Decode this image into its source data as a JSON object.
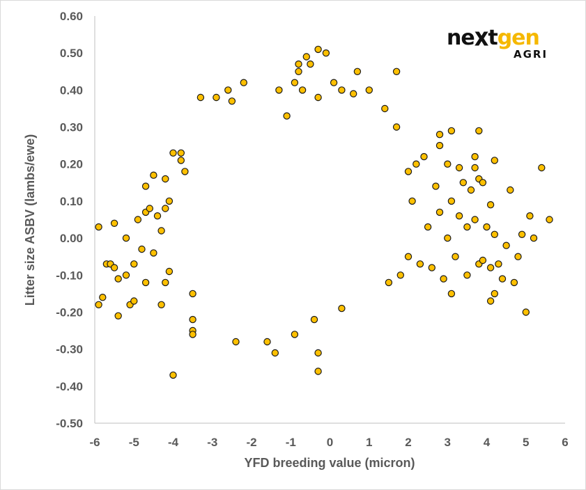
{
  "logo": {
    "main_prefix": "ne",
    "main_x": "x",
    "main_t": "t",
    "main_suffix": "gen",
    "sub": "AGRI",
    "brand_color": "#f5b800",
    "dark_color": "#111111"
  },
  "chart_data": {
    "type": "scatter",
    "title": "",
    "xlabel": "YFD breeding value (micron)",
    "ylabel": "Litter size ASBV (lambs/ewe)",
    "xlim": [
      -6,
      6
    ],
    "ylim": [
      -0.5,
      0.6
    ],
    "x_ticks": [
      "-6",
      "-5",
      "-4",
      "-3",
      "-2",
      "-1",
      "0",
      "1",
      "2",
      "3",
      "4",
      "5",
      "6"
    ],
    "y_ticks": [
      "-0.50",
      "-0.40",
      "-0.30",
      "-0.20",
      "-0.10",
      "0.00",
      "0.10",
      "0.20",
      "0.30",
      "0.40",
      "0.50",
      "0.60"
    ],
    "grid": false,
    "legend": "none",
    "marker_fill": "#ffc000",
    "marker_edge": "#1a1a1a",
    "series": [
      {
        "points": [
          [
            -5.9,
            0.03
          ],
          [
            -5.9,
            -0.18
          ],
          [
            -5.8,
            -0.16
          ],
          [
            -5.7,
            -0.07
          ],
          [
            -5.6,
            -0.07
          ],
          [
            -5.5,
            0.04
          ],
          [
            -5.5,
            -0.08
          ],
          [
            -5.4,
            -0.11
          ],
          [
            -5.4,
            -0.21
          ],
          [
            -5.2,
            0.0
          ],
          [
            -5.2,
            -0.1
          ],
          [
            -5.1,
            -0.18
          ],
          [
            -5.0,
            -0.07
          ],
          [
            -5.0,
            -0.17
          ],
          [
            -4.9,
            0.05
          ],
          [
            -4.8,
            -0.03
          ],
          [
            -4.7,
            0.14
          ],
          [
            -4.7,
            0.07
          ],
          [
            -4.7,
            -0.12
          ],
          [
            -4.6,
            0.08
          ],
          [
            -4.5,
            0.17
          ],
          [
            -4.5,
            -0.04
          ],
          [
            -4.4,
            0.06
          ],
          [
            -4.3,
            0.02
          ],
          [
            -4.3,
            -0.18
          ],
          [
            -4.2,
            0.16
          ],
          [
            -4.2,
            0.08
          ],
          [
            -4.2,
            -0.12
          ],
          [
            -4.1,
            0.1
          ],
          [
            -4.1,
            -0.09
          ],
          [
            -4.0,
            0.23
          ],
          [
            -4.0,
            -0.37
          ],
          [
            -3.8,
            0.23
          ],
          [
            -3.8,
            0.21
          ],
          [
            -3.7,
            0.18
          ],
          [
            -3.5,
            -0.15
          ],
          [
            -3.5,
            -0.22
          ],
          [
            -3.5,
            -0.25
          ],
          [
            -3.5,
            -0.26
          ],
          [
            -3.3,
            0.38
          ],
          [
            -2.9,
            0.38
          ],
          [
            -2.6,
            0.4
          ],
          [
            -2.5,
            0.37
          ],
          [
            -2.4,
            -0.28
          ],
          [
            -2.2,
            0.42
          ],
          [
            -1.6,
            -0.28
          ],
          [
            -1.4,
            -0.31
          ],
          [
            -1.3,
            0.4
          ],
          [
            -1.1,
            0.33
          ],
          [
            -0.9,
            0.42
          ],
          [
            -0.9,
            -0.26
          ],
          [
            -0.8,
            0.47
          ],
          [
            -0.8,
            0.45
          ],
          [
            -0.7,
            0.4
          ],
          [
            -0.6,
            0.49
          ],
          [
            -0.5,
            0.47
          ],
          [
            -0.4,
            -0.22
          ],
          [
            -0.3,
            0.51
          ],
          [
            -0.3,
            0.38
          ],
          [
            -0.3,
            -0.31
          ],
          [
            -0.3,
            -0.36
          ],
          [
            -0.1,
            0.5
          ],
          [
            0.1,
            0.42
          ],
          [
            0.3,
            0.4
          ],
          [
            0.3,
            -0.19
          ],
          [
            0.6,
            0.39
          ],
          [
            0.7,
            0.45
          ],
          [
            1.0,
            0.4
          ],
          [
            1.4,
            0.35
          ],
          [
            1.7,
            0.45
          ],
          [
            1.7,
            0.3
          ],
          [
            1.5,
            -0.12
          ],
          [
            1.8,
            -0.1
          ],
          [
            2.0,
            0.18
          ],
          [
            2.0,
            -0.05
          ],
          [
            2.1,
            0.1
          ],
          [
            2.2,
            0.2
          ],
          [
            2.3,
            -0.07
          ],
          [
            2.4,
            0.22
          ],
          [
            2.5,
            0.03
          ],
          [
            2.6,
            -0.08
          ],
          [
            2.7,
            0.14
          ],
          [
            2.8,
            0.28
          ],
          [
            2.8,
            0.25
          ],
          [
            2.8,
            0.07
          ],
          [
            2.9,
            -0.11
          ],
          [
            3.0,
            0.2
          ],
          [
            3.0,
            0.0
          ],
          [
            3.1,
            0.29
          ],
          [
            3.1,
            0.1
          ],
          [
            3.1,
            -0.15
          ],
          [
            3.2,
            -0.05
          ],
          [
            3.3,
            0.19
          ],
          [
            3.3,
            0.06
          ],
          [
            3.4,
            0.15
          ],
          [
            3.5,
            0.03
          ],
          [
            3.5,
            -0.1
          ],
          [
            3.6,
            0.13
          ],
          [
            3.7,
            0.22
          ],
          [
            3.7,
            0.05
          ],
          [
            3.7,
            0.19
          ],
          [
            3.8,
            0.29
          ],
          [
            3.8,
            0.16
          ],
          [
            3.8,
            -0.07
          ],
          [
            3.9,
            0.15
          ],
          [
            3.9,
            -0.06
          ],
          [
            4.0,
            0.03
          ],
          [
            4.1,
            0.09
          ],
          [
            4.1,
            -0.08
          ],
          [
            4.1,
            -0.17
          ],
          [
            4.2,
            0.21
          ],
          [
            4.2,
            0.01
          ],
          [
            4.2,
            -0.15
          ],
          [
            4.3,
            -0.07
          ],
          [
            4.4,
            -0.11
          ],
          [
            4.5,
            -0.02
          ],
          [
            4.6,
            0.13
          ],
          [
            4.7,
            -0.12
          ],
          [
            4.8,
            -0.05
          ],
          [
            4.9,
            0.01
          ],
          [
            5.0,
            -0.2
          ],
          [
            5.1,
            0.06
          ],
          [
            5.2,
            0.0
          ],
          [
            5.4,
            0.19
          ],
          [
            5.6,
            0.05
          ]
        ]
      }
    ]
  }
}
